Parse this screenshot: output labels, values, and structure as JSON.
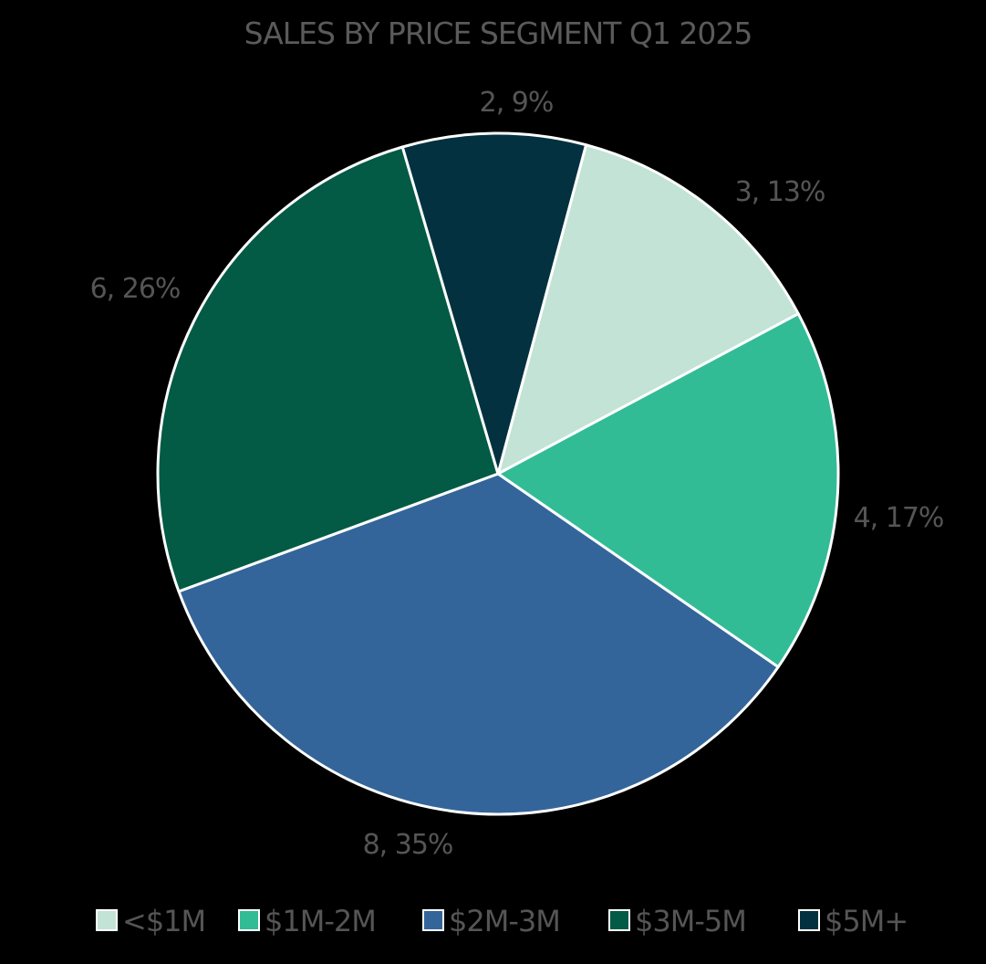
{
  "chart_data": {
    "type": "pie",
    "title": "SALES BY PRICE SEGMENT Q1 2025",
    "categories": [
      "<$1M",
      "$1M-2M",
      "$2M-3M",
      "$3M-5M",
      "$5M+"
    ],
    "values": [
      3,
      4,
      8,
      6,
      2
    ],
    "percents": [
      13,
      17,
      35,
      26,
      9
    ],
    "data_labels": [
      "3, 13%",
      "4, 17%",
      "8, 35%",
      "6, 26%",
      "2, 9%"
    ],
    "colors": [
      "#c2e3d5",
      "#32bc96",
      "#34659a",
      "#035a45",
      "#03313f"
    ],
    "start_angle_deg": 15,
    "direction": "clockwise",
    "legend_position": "bottom"
  }
}
